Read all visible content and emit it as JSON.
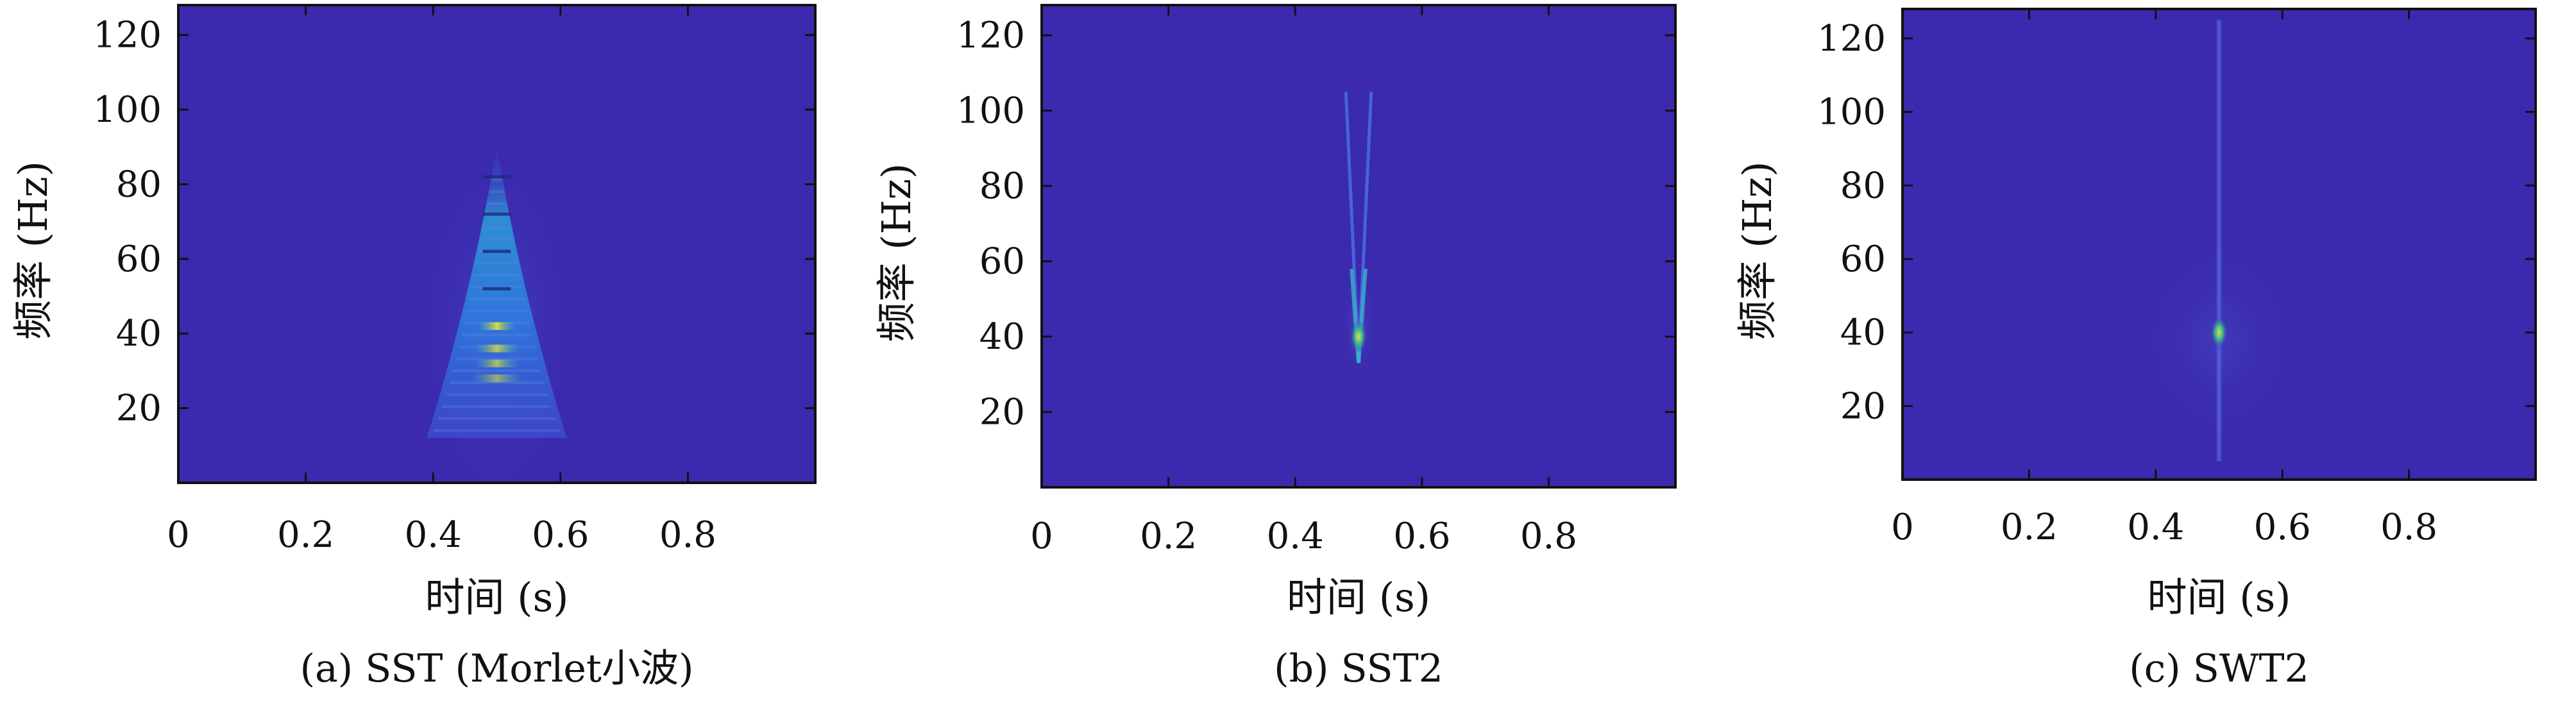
{
  "chart_data": [
    {
      "type": "heatmap",
      "caption": "(a) SST (Morlet小波)",
      "xlabel": "时间 (s)",
      "ylabel": "频率 (Hz)",
      "xlim": [
        0,
        1
      ],
      "ylim": [
        0,
        128
      ],
      "xticks": [
        0,
        0.2,
        0.4,
        0.6,
        0.8
      ],
      "xticklabels": [
        "0",
        "0.2",
        "0.4",
        "0.6",
        "0.8"
      ],
      "yticks": [
        20,
        40,
        60,
        80,
        100,
        120
      ],
      "yticklabels": [
        "20",
        "40",
        "60",
        "80",
        "100",
        "120"
      ],
      "background_color": "#3b2aad",
      "features": [
        {
          "kind": "cone",
          "t_center": 0.5,
          "f_low": 12,
          "f_high": 90,
          "t_halfwidth_at_low": 0.11
        },
        {
          "kind": "hot_band",
          "t_center": 0.5,
          "f": 42,
          "t_halfwidth": 0.03,
          "intensity": 0.95
        },
        {
          "kind": "hot_band",
          "t_center": 0.5,
          "f": 36,
          "t_halfwidth": 0.035,
          "intensity": 0.8
        },
        {
          "kind": "hot_band",
          "t_center": 0.5,
          "f": 32,
          "t_halfwidth": 0.035,
          "intensity": 0.7
        },
        {
          "kind": "hot_band",
          "t_center": 0.5,
          "f": 28,
          "t_halfwidth": 0.04,
          "intensity": 0.6
        }
      ]
    },
    {
      "type": "heatmap",
      "caption": "(b) SST2",
      "xlabel": "时间 (s)",
      "ylabel": "频率 (Hz)",
      "xlim": [
        0,
        1
      ],
      "ylim": [
        0,
        128
      ],
      "xticks": [
        0,
        0.2,
        0.4,
        0.6,
        0.8
      ],
      "xticklabels": [
        "0",
        "0.2",
        "0.4",
        "0.6",
        "0.8"
      ],
      "yticks": [
        20,
        40,
        60,
        80,
        100,
        120
      ],
      "yticklabels": [
        "20",
        "40",
        "60",
        "80",
        "100",
        "120"
      ],
      "background_color": "#3b2aad",
      "features": [
        {
          "kind": "v_shape",
          "t_center": 0.5,
          "f_vertex": 33,
          "f_top": 105,
          "t_spread_at_top": 0.02
        },
        {
          "kind": "hot_spot",
          "t": 0.5,
          "f": 40,
          "intensity": 0.9
        }
      ]
    },
    {
      "type": "heatmap",
      "caption": "(c) SWT2",
      "xlabel": "时间 (s)",
      "ylabel": "频率 (Hz)",
      "xlim": [
        0,
        1
      ],
      "ylim": [
        0,
        128
      ],
      "xticks": [
        0,
        0.2,
        0.4,
        0.6,
        0.8
      ],
      "xticklabels": [
        "0",
        "0.2",
        "0.4",
        "0.6",
        "0.8"
      ],
      "yticks": [
        20,
        40,
        60,
        80,
        100,
        120
      ],
      "yticklabels": [
        "20",
        "40",
        "60",
        "80",
        "100",
        "120"
      ],
      "background_color": "#3b2aad",
      "features": [
        {
          "kind": "vertical_line",
          "t": 0.5,
          "f_low": 5,
          "f_high": 125,
          "intensity": 0.35
        },
        {
          "kind": "hot_spot",
          "t": 0.5,
          "f": 40,
          "intensity": 0.9
        }
      ]
    }
  ]
}
